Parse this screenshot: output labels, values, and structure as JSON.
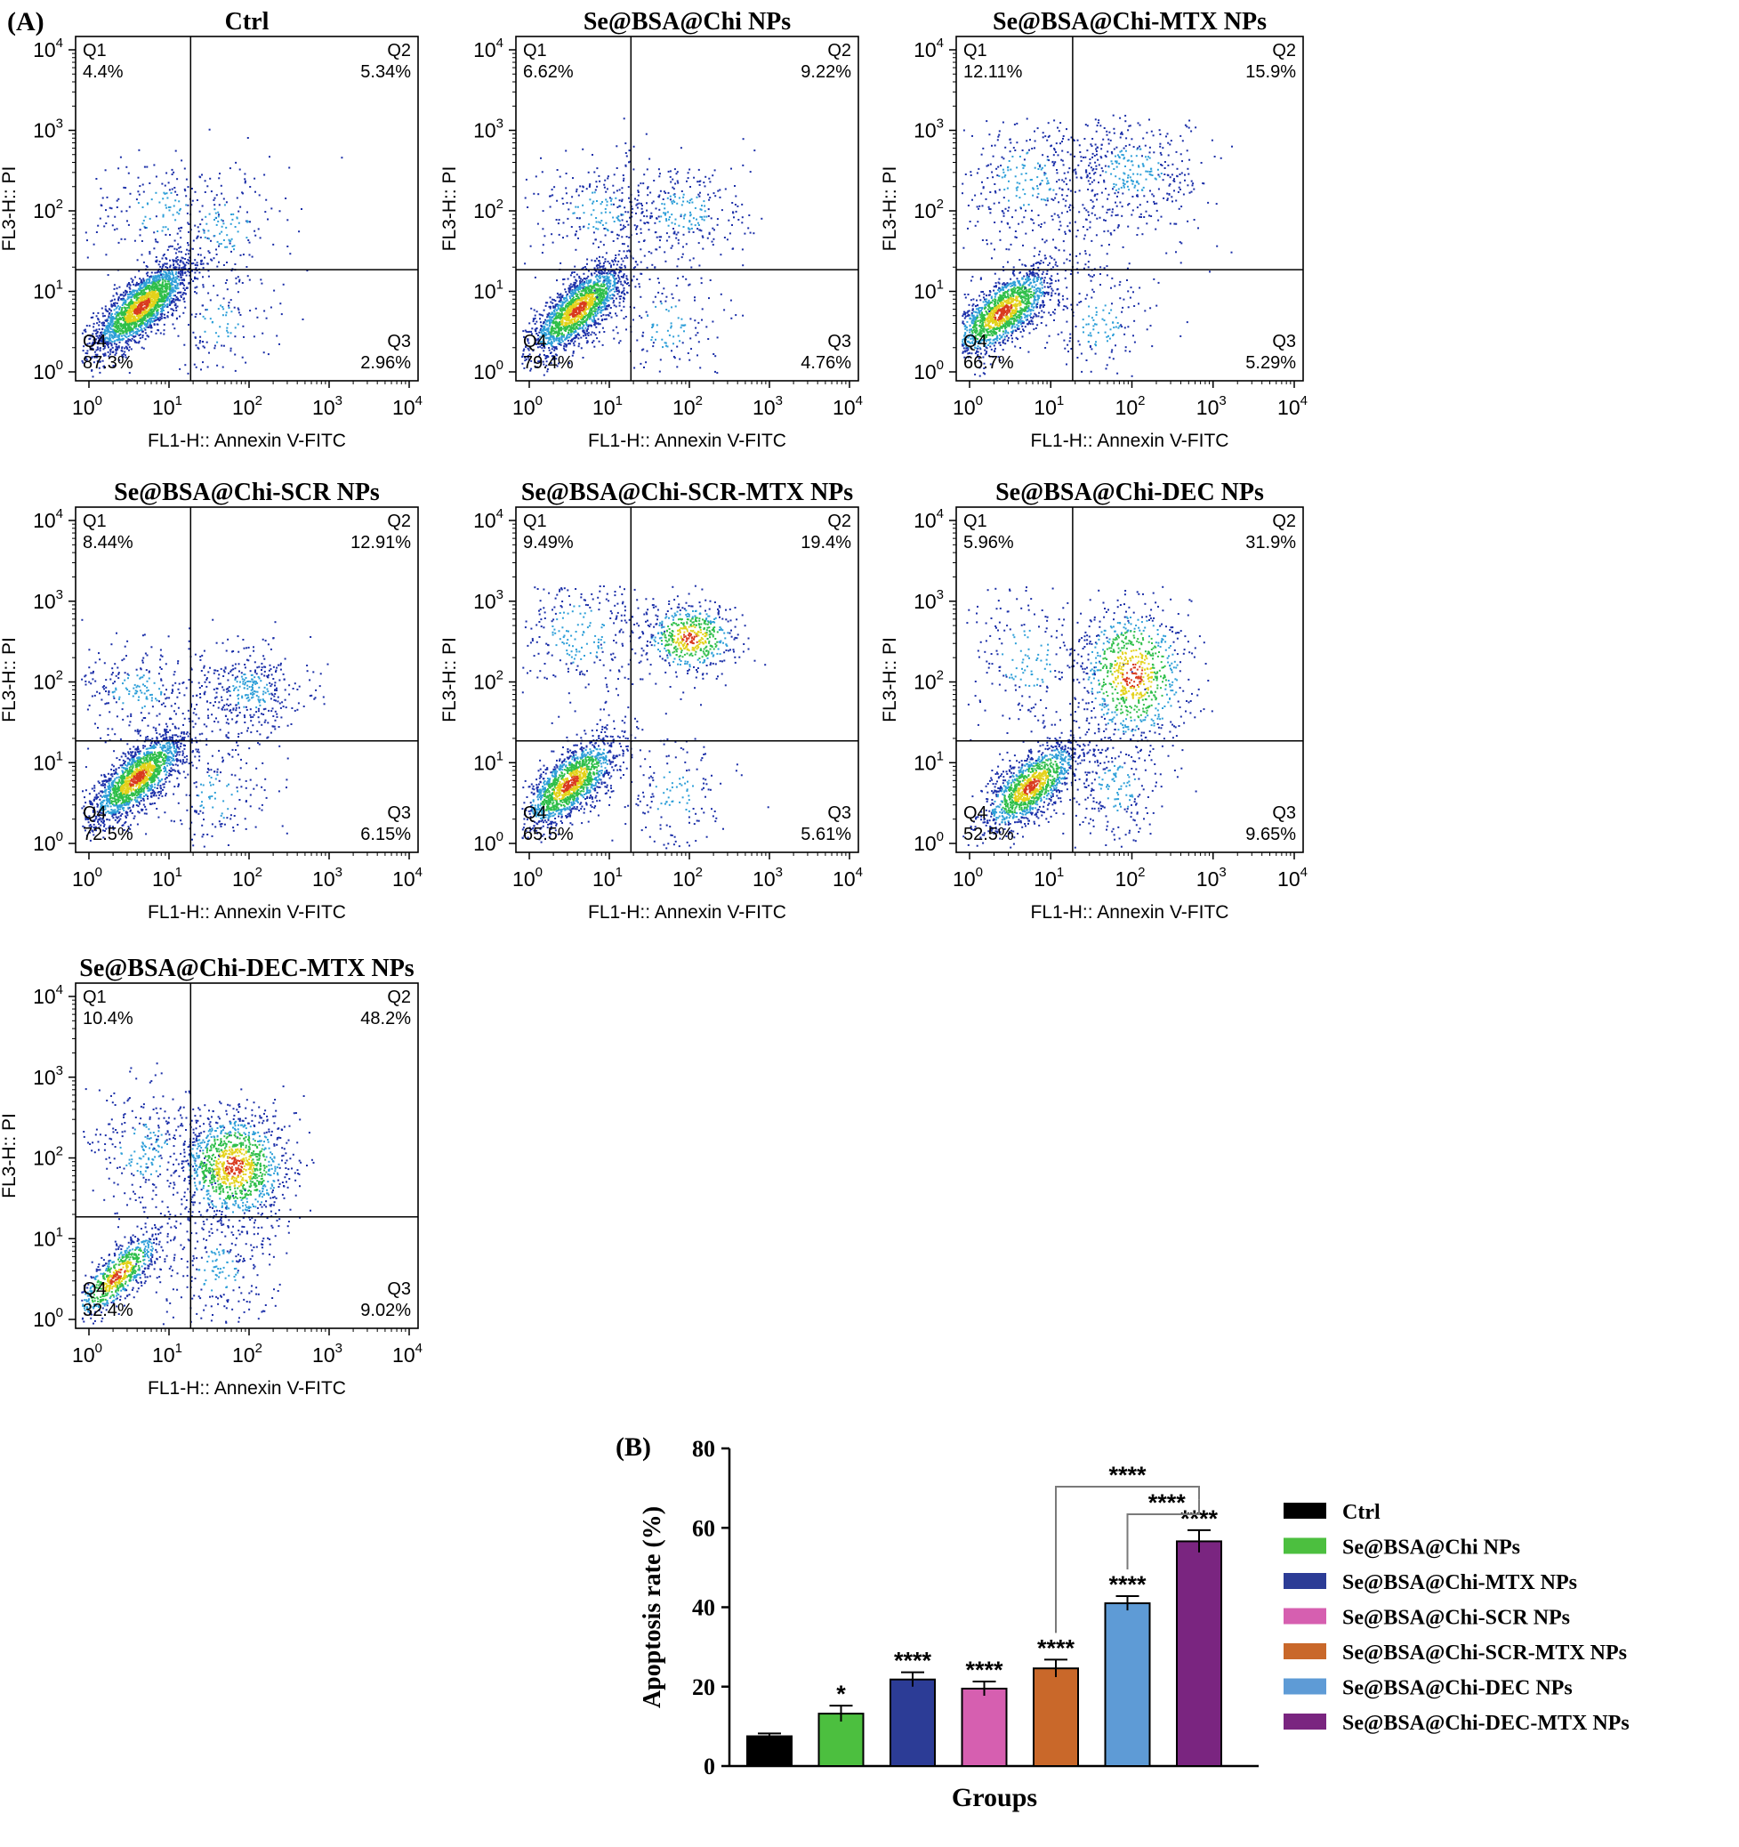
{
  "figure": {
    "panel_a_label": "(A)",
    "panel_b_label": "(B)"
  },
  "palette": {
    "axis": "#000000",
    "dot_low": "#1a2ea8",
    "dot_mid1": "#2e9fd8",
    "dot_mid2": "#2fbf4a",
    "dot_high1": "#e3d21b",
    "dot_high2": "#d93a1e",
    "dot_faint": "#c9d9e8"
  },
  "flow": {
    "x_axis_label": "FL1-H:: Annexin V-FITC",
    "y_axis_label": "FL3-H:: PI",
    "ticks": [
      {
        "base": "10",
        "exp": "0"
      },
      {
        "base": "10",
        "exp": "1"
      },
      {
        "base": "10",
        "exp": "2"
      },
      {
        "base": "10",
        "exp": "3"
      },
      {
        "base": "10",
        "exp": "4"
      }
    ],
    "quadrant_names": {
      "q1": "Q1",
      "q2": "Q2",
      "q3": "Q3",
      "q4": "Q4"
    },
    "panels": [
      {
        "title": "Ctrl",
        "q1": "4.4%",
        "q2": "5.34%",
        "q3": "2.96%",
        "q4": "87.3%"
      },
      {
        "title": "Se@BSA@Chi NPs",
        "q1": "6.62%",
        "q2": "9.22%",
        "q3": "4.76%",
        "q4": "79.4%"
      },
      {
        "title": "Se@BSA@Chi-MTX NPs",
        "q1": "12.11%",
        "q2": "15.9%",
        "q3": "5.29%",
        "q4": "66.7%"
      },
      {
        "title": "Se@BSA@Chi-SCR NPs",
        "q1": "8.44%",
        "q2": "12.91%",
        "q3": "6.15%",
        "q4": "72.5%"
      },
      {
        "title": "Se@BSA@Chi-SCR-MTX NPs",
        "q1": "9.49%",
        "q2": "19.4%",
        "q3": "5.61%",
        "q4": "65.5%"
      },
      {
        "title": "Se@BSA@Chi-DEC NPs",
        "q1": "5.96%",
        "q2": "31.9%",
        "q3": "9.65%",
        "q4": "52.5%"
      },
      {
        "title": "Se@BSA@Chi-DEC-MTX NPs",
        "q1": "10.4%",
        "q2": "48.2%",
        "q3": "9.02%",
        "q4": "32.4%"
      }
    ]
  },
  "chart_data": {
    "type": "bar",
    "title": "",
    "xlabel": "Groups",
    "ylabel": "Apoptosis rate (%)",
    "ylim": [
      0,
      80
    ],
    "yticks": [
      0,
      20,
      40,
      60,
      80
    ],
    "legend_position": "right",
    "categories": [
      "Ctrl",
      "Se@BSA@Chi NPs",
      "Se@BSA@Chi-MTX NPs",
      "Se@BSA@Chi-SCR NPs",
      "Se@BSA@Chi-SCR-MTX NPs",
      "Se@BSA@Chi-DEC NPs",
      "Se@BSA@Chi-DEC-MTX NPs"
    ],
    "values": [
      7.5,
      13.2,
      21.8,
      19.5,
      24.6,
      41.0,
      56.6
    ],
    "errors": [
      0.7,
      2.0,
      1.8,
      1.8,
      2.2,
      1.8,
      2.8
    ],
    "colors": [
      "#000000",
      "#4cbf3f",
      "#2c3c96",
      "#d65fb0",
      "#c9682a",
      "#5e9bd6",
      "#7a2580"
    ],
    "significance": [
      "",
      "*",
      "****",
      "****",
      "****",
      "****",
      "****"
    ],
    "comparisons": [
      {
        "from": 4,
        "to": 6,
        "label": "****"
      },
      {
        "from": 5,
        "to": 6,
        "label": "****"
      }
    ]
  }
}
